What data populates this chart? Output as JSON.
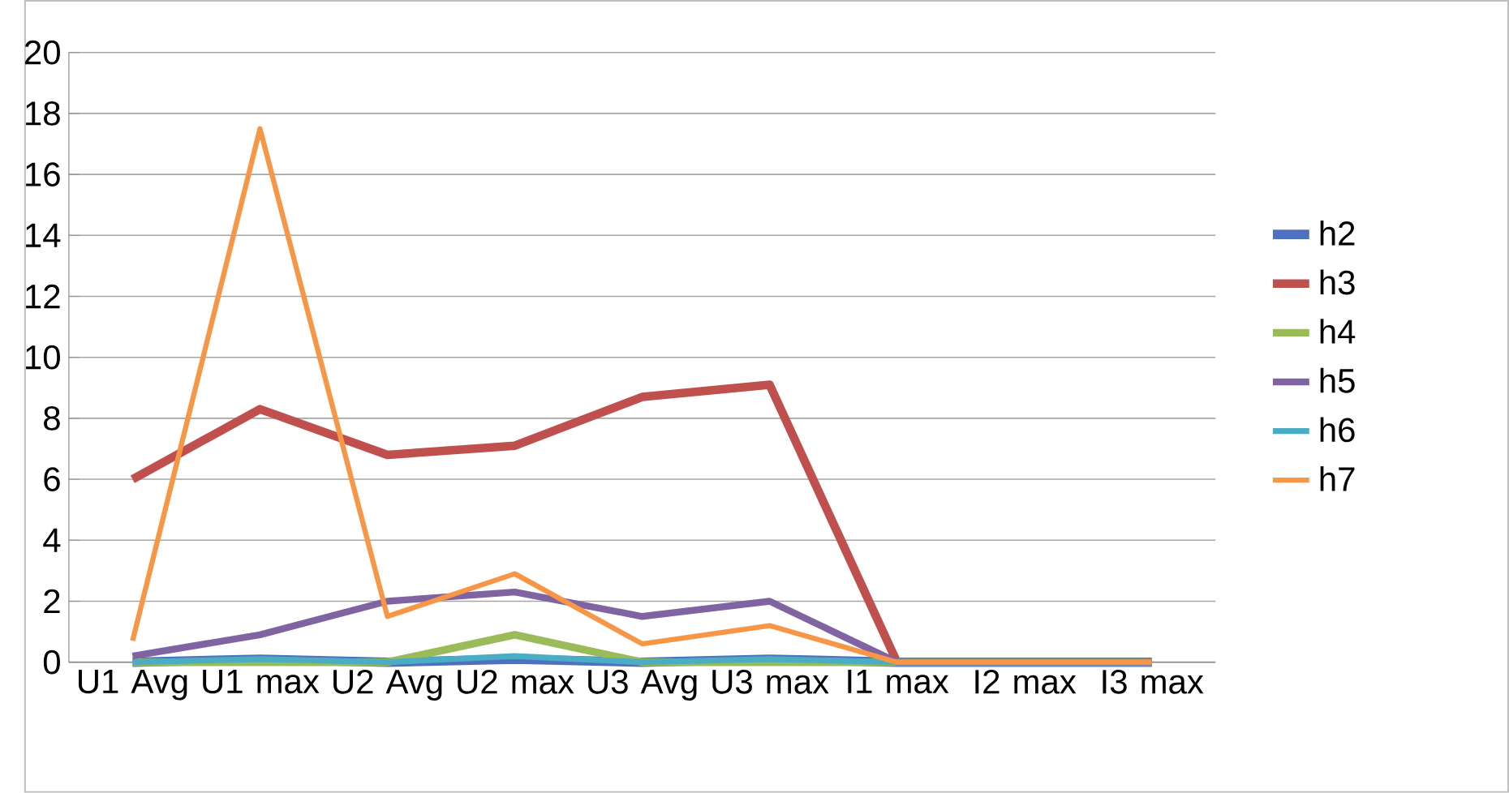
{
  "chart_data": {
    "type": "line",
    "categories": [
      "U1 Avg",
      "U1 max",
      "U2 Avg",
      "U2 max",
      "U3 Avg",
      "U3 max",
      "I1 max",
      "I2 max",
      "I3 max"
    ],
    "series": [
      {
        "name": "h2",
        "color": "#4f6fbf",
        "values": [
          0,
          0.1,
          0,
          0.1,
          0,
          0.1,
          0,
          0,
          0
        ]
      },
      {
        "name": "h3",
        "color": "#c0504d",
        "values": [
          6.0,
          8.3,
          6.8,
          7.1,
          8.7,
          9.1,
          0,
          0,
          0
        ]
      },
      {
        "name": "h4",
        "color": "#9bbb59",
        "values": [
          0,
          0,
          0,
          0.9,
          0,
          0,
          0,
          0,
          0
        ]
      },
      {
        "name": "h5",
        "color": "#8064a2",
        "values": [
          0.2,
          0.9,
          2.0,
          2.3,
          1.5,
          2.0,
          0,
          0,
          0
        ]
      },
      {
        "name": "h6",
        "color": "#4bacc6",
        "values": [
          0,
          0.1,
          0,
          0.2,
          0,
          0.1,
          0,
          0,
          0
        ]
      },
      {
        "name": "h7",
        "color": "#f79646",
        "values": [
          0.7,
          17.5,
          1.5,
          2.9,
          0.6,
          1.2,
          0,
          0,
          0
        ]
      }
    ],
    "ylim": [
      0,
      20
    ],
    "yticks": [
      0,
      2,
      4,
      6,
      8,
      10,
      12,
      14,
      16,
      18,
      20
    ],
    "grid": "y",
    "legend": "right",
    "marker": "none"
  }
}
